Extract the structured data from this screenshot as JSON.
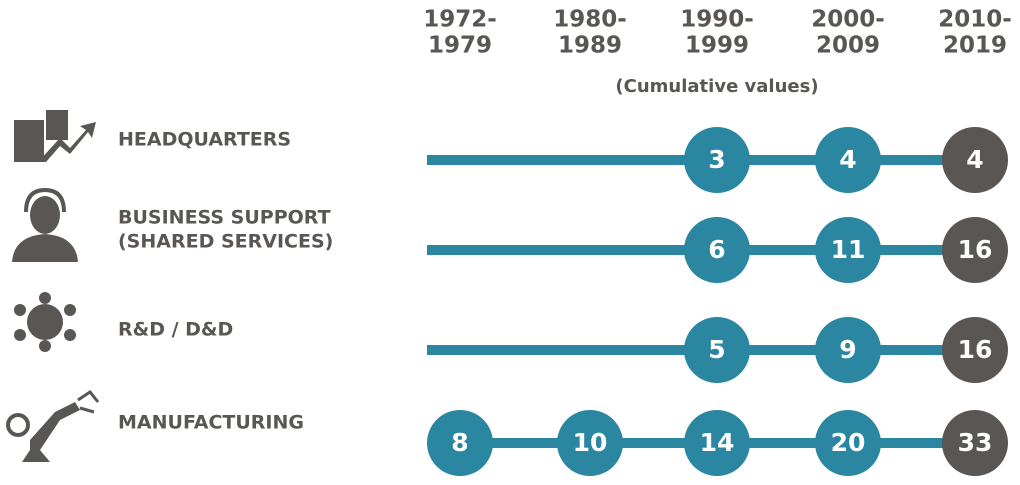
{
  "periods": [
    [
      "1972-",
      "1979"
    ],
    [
      "1980-",
      "1989"
    ],
    [
      "1990-",
      "1999"
    ],
    [
      "2000-",
      "2009"
    ],
    [
      "2010-",
      "2019"
    ]
  ],
  "note": "(Cumulative values)",
  "rows": [
    {
      "label": [
        "HEADQUARTERS"
      ],
      "values": [
        null,
        null,
        3,
        4,
        4
      ]
    },
    {
      "label": [
        "BUSINESS SUPPORT",
        "(SHARED SERVICES)"
      ],
      "values": [
        null,
        null,
        6,
        11,
        16
      ]
    },
    {
      "label": [
        "R&D / D&D"
      ],
      "values": [
        null,
        null,
        5,
        9,
        16
      ]
    },
    {
      "label": [
        "MANUFACTURING"
      ],
      "values": [
        8,
        10,
        14,
        20,
        33
      ]
    }
  ]
}
